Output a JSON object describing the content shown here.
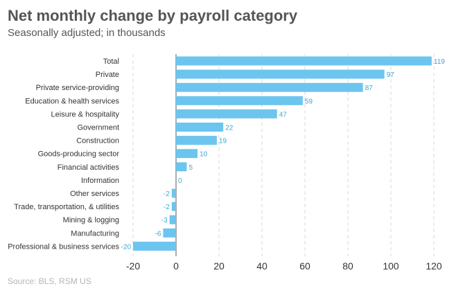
{
  "title": "Net monthly change by payroll category",
  "subtitle": "Seasonally adjusted; in thousands",
  "source": "Source: BLS, RSM US",
  "colors": {
    "bar": "#6cc5ee",
    "value_label": "#3aa6d6",
    "grid": "#d9d9d9",
    "axis": "#555555"
  },
  "chart_data": {
    "type": "bar",
    "orientation": "horizontal",
    "categories": [
      "Total",
      "Private",
      "Private service-providing",
      "Education & health services",
      "Leisure & hospitality",
      "Government",
      "Construction",
      "Goods-producing sector",
      "Financial activities",
      "Information",
      "Other services",
      "Trade, transportation, & utilities",
      "Mining & logging",
      "Manufacturing",
      "Professional & business services"
    ],
    "values": [
      119,
      97,
      87,
      59,
      47,
      22,
      19,
      10,
      5,
      0,
      -2,
      -2,
      -3,
      -6,
      -20
    ],
    "value_labels": [
      "119",
      "97",
      "87",
      "59",
      "47",
      "22",
      "19",
      "10",
      "5",
      "0",
      "-2",
      "-2",
      "-3",
      "-6",
      "-20"
    ],
    "xlim": [
      -20,
      120
    ],
    "xticks": [
      -20,
      0,
      20,
      40,
      60,
      80,
      100,
      120
    ],
    "xtick_labels": [
      "-20",
      "0",
      "20",
      "40",
      "60",
      "80",
      "100",
      "120"
    ],
    "grid": "vertical dashed",
    "title": "Net monthly change by payroll category",
    "xlabel": "",
    "ylabel": ""
  }
}
